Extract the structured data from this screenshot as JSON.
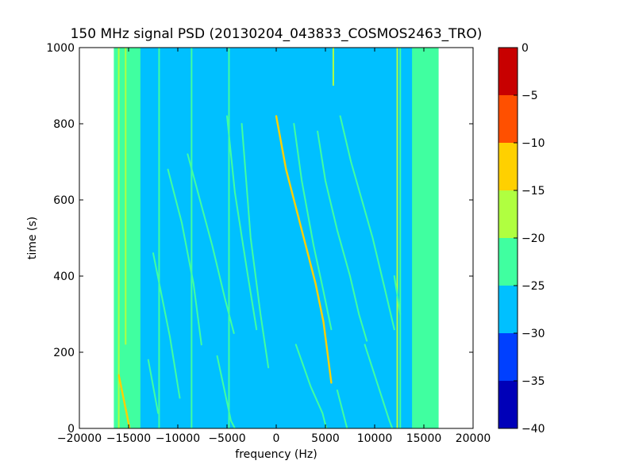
{
  "chart_data": {
    "type": "heatmap",
    "title": "150 MHz signal PSD (20130204_043833_COSMOS2463_TRO)",
    "xlabel": "frequency (Hz)",
    "ylabel": "time (s)",
    "xlim": [
      -20000,
      20000
    ],
    "ylim": [
      0,
      1000
    ],
    "x_ticks": [
      -20000,
      -15000,
      -10000,
      -5000,
      0,
      5000,
      10000,
      15000,
      20000
    ],
    "y_ticks": [
      0,
      200,
      400,
      600,
      800,
      1000
    ],
    "data_extent_x": [
      -16500,
      16500
    ],
    "background_level": [
      -30,
      -25
    ],
    "band_edge_level": [
      -25,
      -20
    ],
    "colorbar": {
      "levels": [
        -40,
        -35,
        -30,
        -25,
        -20,
        -15,
        -10,
        -5,
        0
      ],
      "colors": [
        "#0000b8",
        "#0040ff",
        "#00c0ff",
        "#40ffa0",
        "#b0ff40",
        "#ffd000",
        "#ff5000",
        "#c80000"
      ],
      "ticks": [
        0,
        -5,
        -10,
        -15,
        -20,
        -25,
        -30,
        -35,
        -40
      ]
    },
    "traces": [
      {
        "points": [
          [
            -16000,
            140
          ],
          [
            -15200,
            40
          ],
          [
            -14900,
            0
          ]
        ],
        "level": [
          -15,
          -10
        ]
      },
      {
        "points": [
          [
            -3500,
            800
          ],
          [
            -2600,
            500
          ],
          [
            -1600,
            300
          ],
          [
            -800,
            160
          ]
        ],
        "level": [
          -25,
          -20
        ]
      },
      {
        "points": [
          [
            -5000,
            820
          ],
          [
            -4200,
            620
          ],
          [
            -3000,
            420
          ],
          [
            -2000,
            260
          ]
        ],
        "level": [
          -25,
          -20
        ]
      },
      {
        "points": [
          [
            -9000,
            720
          ],
          [
            -6500,
            480
          ],
          [
            -5200,
            340
          ],
          [
            -4300,
            250
          ]
        ],
        "level": [
          -25,
          -20
        ]
      },
      {
        "points": [
          [
            -11000,
            680
          ],
          [
            -9600,
            540
          ],
          [
            -8400,
            380
          ],
          [
            -7600,
            220
          ]
        ],
        "level": [
          -25,
          -20
        ]
      },
      {
        "points": [
          [
            -12500,
            460
          ],
          [
            -10800,
            240
          ],
          [
            -9800,
            80
          ]
        ],
        "level": [
          -25,
          -20
        ]
      },
      {
        "points": [
          [
            -6000,
            190
          ],
          [
            -4600,
            20
          ],
          [
            -4200,
            0
          ]
        ],
        "level": [
          -25,
          -20
        ]
      },
      {
        "points": [
          [
            -13000,
            180
          ],
          [
            -12000,
            40
          ]
        ],
        "level": [
          -25,
          -20
        ]
      },
      {
        "points": [
          [
            0,
            820
          ],
          [
            1000,
            680
          ],
          [
            2200,
            560
          ],
          [
            3200,
            460
          ],
          [
            4000,
            380
          ],
          [
            4800,
            280
          ],
          [
            5200,
            200
          ],
          [
            5600,
            120
          ]
        ],
        "level": [
          -15,
          -10
        ]
      },
      {
        "points": [
          [
            1800,
            800
          ],
          [
            2600,
            650
          ],
          [
            3800,
            480
          ],
          [
            4800,
            360
          ],
          [
            5600,
            260
          ]
        ],
        "level": [
          -25,
          -20
        ]
      },
      {
        "points": [
          [
            4200,
            780
          ],
          [
            5000,
            650
          ],
          [
            6200,
            520
          ],
          [
            7500,
            400
          ],
          [
            8400,
            300
          ],
          [
            9200,
            230
          ]
        ],
        "level": [
          -25,
          -20
        ]
      },
      {
        "points": [
          [
            6500,
            820
          ],
          [
            7600,
            700
          ],
          [
            8700,
            600
          ],
          [
            9800,
            500
          ],
          [
            11000,
            370
          ],
          [
            12000,
            260
          ]
        ],
        "level": [
          -25,
          -20
        ]
      },
      {
        "points": [
          [
            2000,
            220
          ],
          [
            3500,
            110
          ],
          [
            4700,
            40
          ],
          [
            5100,
            0
          ]
        ],
        "level": [
          -25,
          -20
        ]
      },
      {
        "points": [
          [
            9000,
            220
          ],
          [
            10500,
            100
          ],
          [
            11500,
            20
          ],
          [
            11800,
            0
          ]
        ],
        "level": [
          -25,
          -20
        ]
      },
      {
        "points": [
          [
            6200,
            100
          ],
          [
            7200,
            0
          ]
        ],
        "level": [
          -25,
          -20
        ]
      },
      {
        "points": [
          [
            12000,
            400
          ],
          [
            12600,
            300
          ]
        ],
        "level": [
          -25,
          -20
        ]
      }
    ],
    "vertical_lines": [
      {
        "x": -16000,
        "level": [
          -20,
          -15
        ],
        "from": 0,
        "to": 1000
      },
      {
        "x": -15300,
        "level": [
          -20,
          -15
        ],
        "from": 220,
        "to": 1000
      },
      {
        "x": -11900,
        "level": [
          -25,
          -20
        ],
        "from": 0,
        "to": 1000
      },
      {
        "x": -8600,
        "level": [
          -25,
          -20
        ],
        "from": 0,
        "to": 1000
      },
      {
        "x": -4800,
        "level": [
          -25,
          -20
        ],
        "from": 0,
        "to": 1000
      },
      {
        "x": 5800,
        "level": [
          -20,
          -15
        ],
        "from": 900,
        "to": 1000
      },
      {
        "x": 12300,
        "level": [
          -20,
          -15
        ],
        "from": 0,
        "to": 1000
      },
      {
        "x": 12600,
        "level": [
          -25,
          -20
        ],
        "from": 0,
        "to": 1000
      }
    ]
  }
}
